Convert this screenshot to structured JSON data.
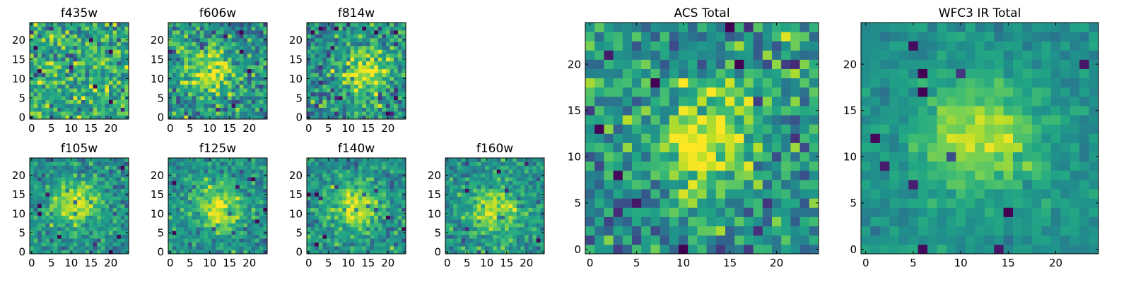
{
  "figure": {
    "colormap": "viridis",
    "panel_titles": [
      "f435w",
      "f606w",
      "f814w",
      "f105w",
      "f125w",
      "f140w",
      "f160w",
      "ACS Total",
      "WFC3 IR Total"
    ]
  },
  "chart_data": [
    {
      "type": "heatmap",
      "title": "f435w",
      "grid": [
        25,
        25
      ],
      "xlim": [
        -0.5,
        24.5
      ],
      "ylim": [
        -0.5,
        24.5
      ],
      "xticks": [
        0,
        5,
        10,
        15,
        20
      ],
      "yticks": [
        0,
        5,
        10,
        15,
        20
      ],
      "colormap": "viridis",
      "source_center": null,
      "noise": "high"
    },
    {
      "type": "heatmap",
      "title": "f606w",
      "grid": [
        25,
        25
      ],
      "xlim": [
        -0.5,
        24.5
      ],
      "ylim": [
        -0.5,
        24.5
      ],
      "xticks": [
        0,
        5,
        10,
        15,
        20
      ],
      "yticks": [
        0,
        5,
        10,
        15,
        20
      ],
      "colormap": "viridis",
      "source_center": [
        10,
        12
      ],
      "noise": "high"
    },
    {
      "type": "heatmap",
      "title": "f814w",
      "grid": [
        25,
        25
      ],
      "xlim": [
        -0.5,
        24.5
      ],
      "ylim": [
        -0.5,
        24.5
      ],
      "xticks": [
        0,
        5,
        10,
        15,
        20
      ],
      "yticks": [
        0,
        5,
        10,
        15,
        20
      ],
      "colormap": "viridis",
      "source_center": [
        14,
        12
      ],
      "noise": "high"
    },
    {
      "type": "heatmap",
      "title": "f105w",
      "grid": [
        25,
        25
      ],
      "xlim": [
        -0.5,
        24.5
      ],
      "ylim": [
        -0.5,
        24.5
      ],
      "xticks": [
        0,
        5,
        10,
        15,
        20
      ],
      "yticks": [
        0,
        5,
        10,
        15,
        20
      ],
      "colormap": "viridis",
      "source_center": [
        11,
        12
      ],
      "noise": "medium"
    },
    {
      "type": "heatmap",
      "title": "f125w",
      "grid": [
        25,
        25
      ],
      "xlim": [
        -0.5,
        24.5
      ],
      "ylim": [
        -0.5,
        24.5
      ],
      "xticks": [
        0,
        5,
        10,
        15,
        20
      ],
      "yticks": [
        0,
        5,
        10,
        15,
        20
      ],
      "colormap": "viridis",
      "source_center": [
        12,
        12
      ],
      "noise": "medium"
    },
    {
      "type": "heatmap",
      "title": "f140w",
      "grid": [
        25,
        25
      ],
      "xlim": [
        -0.5,
        24.5
      ],
      "ylim": [
        -0.5,
        24.5
      ],
      "xticks": [
        0,
        5,
        10,
        15,
        20
      ],
      "yticks": [
        0,
        5,
        10,
        15,
        20
      ],
      "colormap": "viridis",
      "source_center": [
        12,
        12
      ],
      "noise": "medium"
    },
    {
      "type": "heatmap",
      "title": "f160w",
      "grid": [
        25,
        25
      ],
      "xlim": [
        -0.5,
        24.5
      ],
      "ylim": [
        -0.5,
        24.5
      ],
      "xticks": [
        0,
        5,
        10,
        15,
        20
      ],
      "yticks": [
        0,
        5,
        10,
        15,
        20
      ],
      "colormap": "viridis",
      "source_center": [
        12,
        11
      ],
      "noise": "medium"
    },
    {
      "type": "heatmap",
      "title": "ACS Total",
      "grid": [
        25,
        25
      ],
      "xlim": [
        -0.5,
        24.5
      ],
      "ylim": [
        -0.5,
        24.5
      ],
      "xticks": [
        0,
        5,
        10,
        15,
        20
      ],
      "yticks": [
        0,
        5,
        10,
        15,
        20
      ],
      "colormap": "viridis",
      "source_center": [
        12,
        12
      ],
      "noise": "high"
    },
    {
      "type": "heatmap",
      "title": "WFC3 IR Total",
      "grid": [
        25,
        25
      ],
      "xlim": [
        -0.5,
        24.5
      ],
      "ylim": [
        -0.5,
        24.5
      ],
      "xticks": [
        0,
        5,
        10,
        15,
        20
      ],
      "yticks": [
        0,
        5,
        10,
        15,
        20
      ],
      "colormap": "viridis",
      "source_center": [
        12,
        12
      ],
      "noise": "low"
    }
  ]
}
